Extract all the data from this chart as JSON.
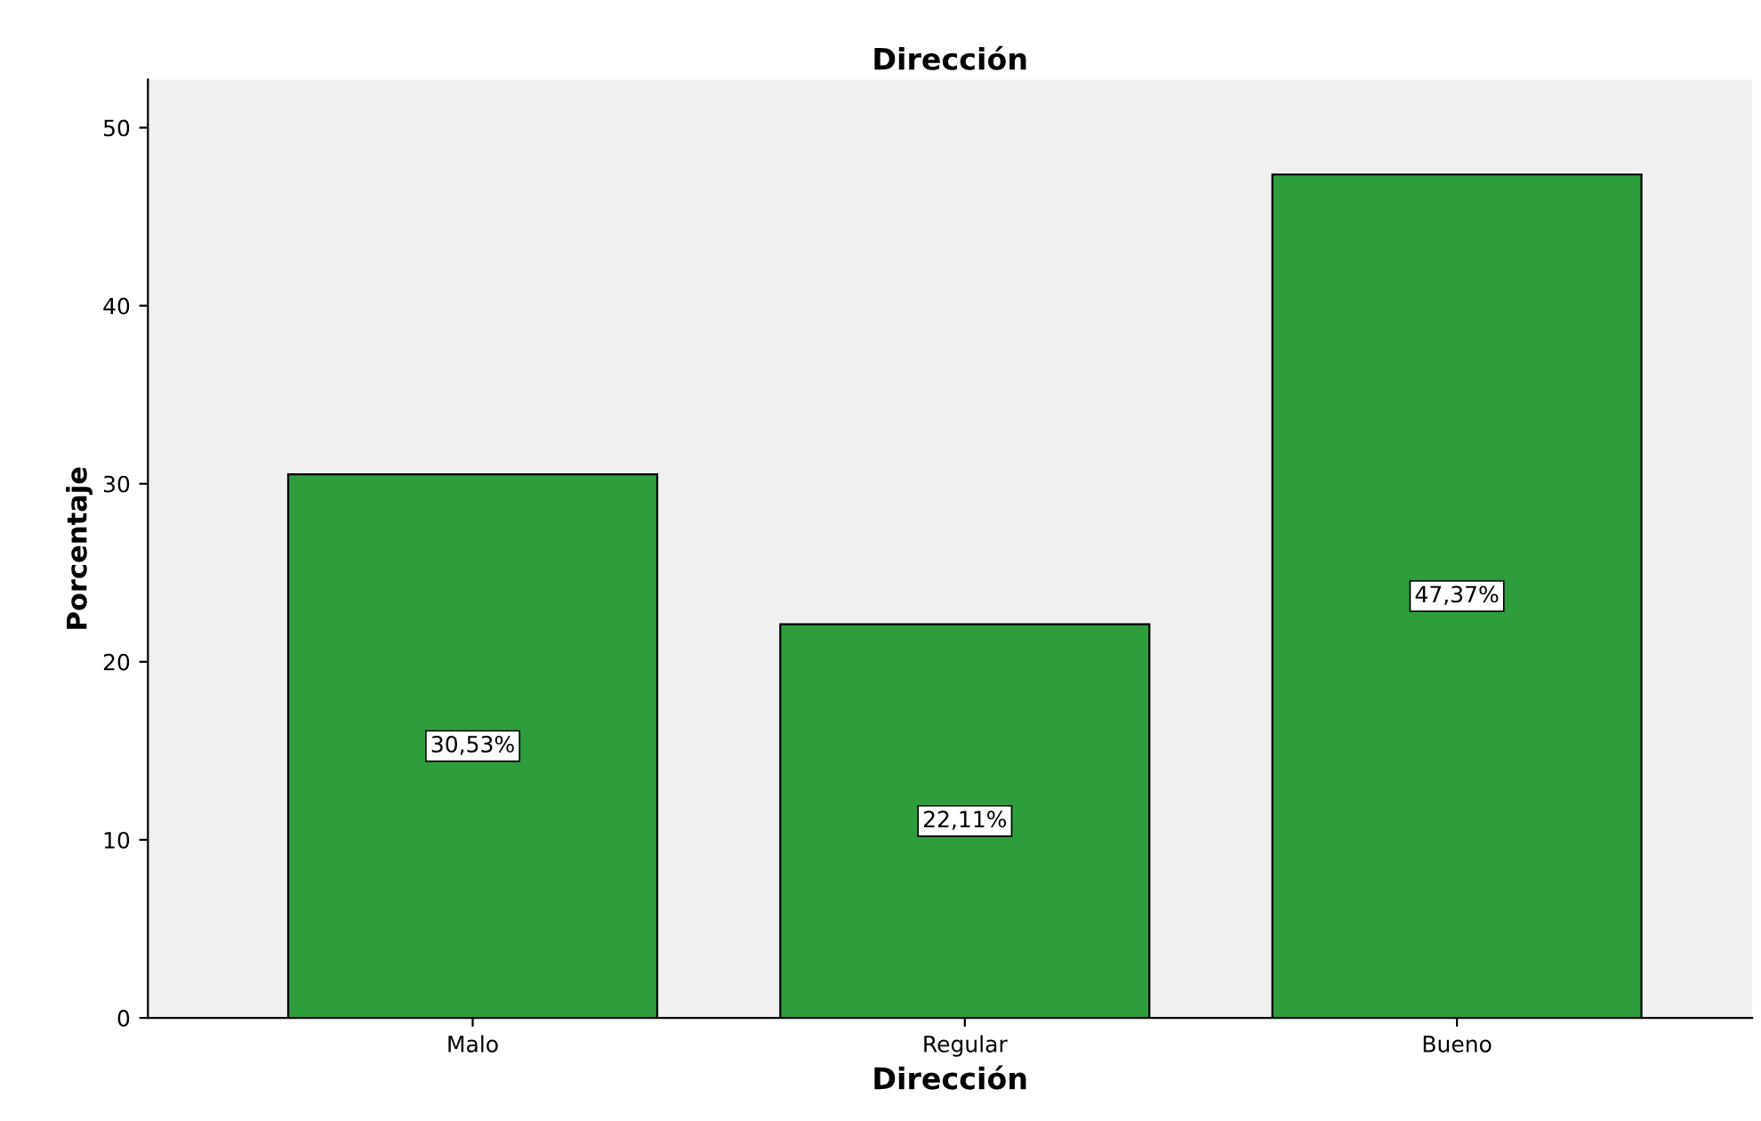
{
  "chart_data": {
    "type": "bar",
    "title": "Dirección",
    "xlabel": "Dirección",
    "ylabel": "Porcentaje",
    "categories": [
      "Malo",
      "Regular",
      "Bueno"
    ],
    "values": [
      30.53,
      22.11,
      47.37
    ],
    "value_labels": [
      "30,53%",
      "22,11%",
      "47,37%"
    ],
    "color": "#2e9e3c",
    "ylim": [
      0,
      52.7
    ],
    "yticks": [
      0,
      10,
      20,
      30,
      40,
      50
    ],
    "grid": false,
    "legend": false
  }
}
